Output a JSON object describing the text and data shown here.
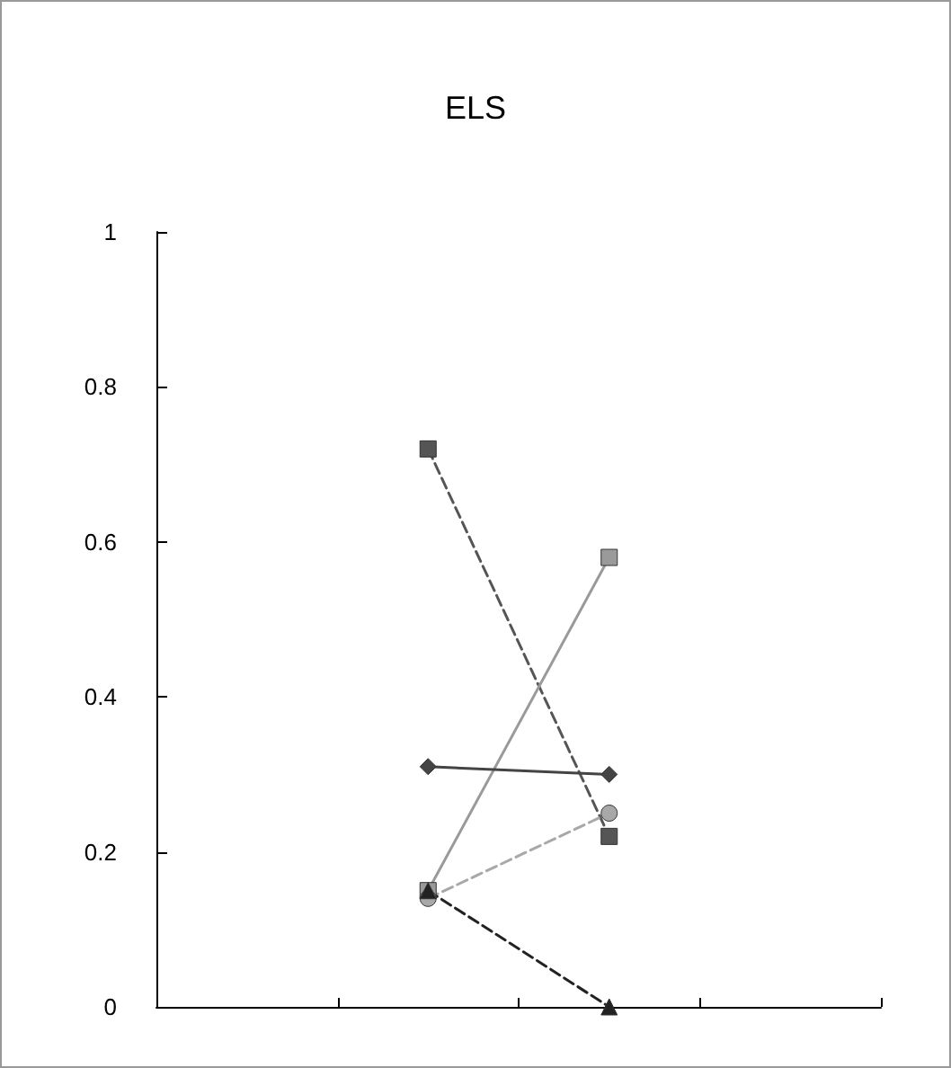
{
  "chart_data": {
    "type": "line",
    "title": "ELS",
    "categories": [
      null,
      null,
      null,
      null
    ],
    "ylim": [
      0,
      1
    ],
    "yticks": [
      0,
      0.2,
      0.4,
      0.6,
      0.8,
      1
    ],
    "grid": false,
    "series": [
      {
        "color": "#555555",
        "marker": "square",
        "line_style": "dashed",
        "values": [
          null,
          0.72,
          0.22,
          null
        ]
      },
      {
        "color": "#9a9a9a",
        "marker": "square",
        "line_style": "solid",
        "values": [
          null,
          0.15,
          0.58,
          null
        ]
      },
      {
        "color": "#444444",
        "marker": "diamond",
        "line_style": "solid",
        "values": [
          null,
          0.31,
          0.3,
          null
        ]
      },
      {
        "color": "#a8a8a8",
        "marker": "circle",
        "line_style": "dashed",
        "values": [
          null,
          0.14,
          0.25,
          null
        ]
      },
      {
        "color": "#222222",
        "marker": "triangle",
        "line_style": "dashed",
        "values": [
          null,
          0.15,
          0,
          null
        ]
      }
    ]
  }
}
